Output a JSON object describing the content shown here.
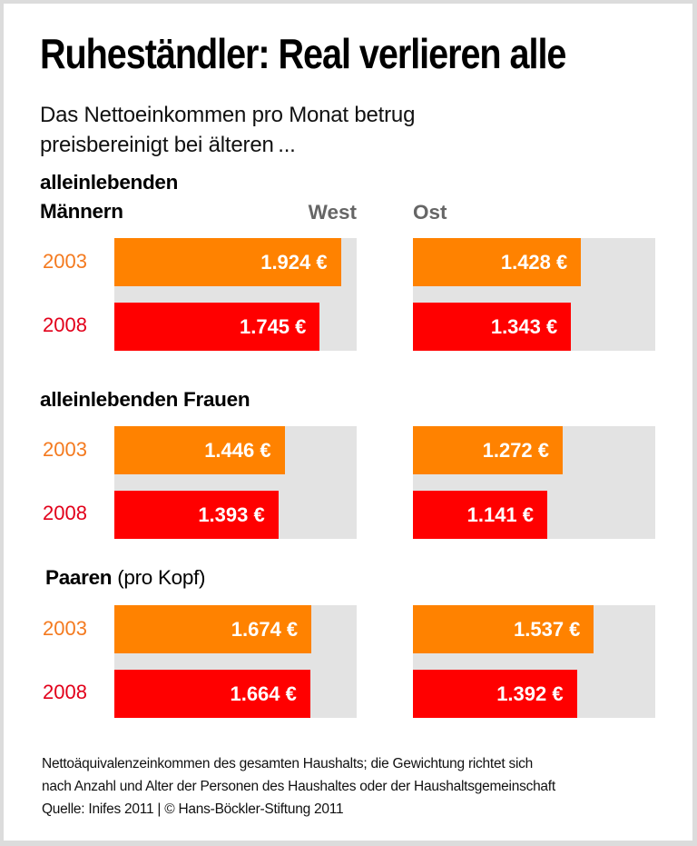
{
  "chart_data": {
    "type": "bar",
    "orientation": "horizontal",
    "title": "Ruheständler: Real verlieren alle",
    "subtitle_lines": [
      "Das Nettoeinkommen pro Monat betrug",
      "preisbereinigt bei älteren ..."
    ],
    "columns": [
      "West",
      "Ost"
    ],
    "years": [
      "2003",
      "2008"
    ],
    "unit": "€",
    "xlim": [
      0,
      2058
    ],
    "colors": {
      "2003": "#ff8200",
      "2008": "#ff0000",
      "track": "#e3e3e3",
      "year2003_text": "#f47a1f",
      "year2008_text": "#e2001a",
      "column_header_text": "#666666"
    },
    "groups": [
      {
        "label_lines": [
          "alleinlebenden",
          "Männern"
        ],
        "series": [
          {
            "year": "2003",
            "west": 1924,
            "ost": 1428,
            "west_label": "1.924 €",
            "ost_label": "1.428 €"
          },
          {
            "year": "2008",
            "west": 1745,
            "ost": 1343,
            "west_label": "1.745 €",
            "ost_label": "1.343 €"
          }
        ]
      },
      {
        "label_lines": [
          "alleinlebenden Frauen"
        ],
        "series": [
          {
            "year": "2003",
            "west": 1446,
            "ost": 1272,
            "west_label": "1.446 €",
            "ost_label": "1.272 €"
          },
          {
            "year": "2008",
            "west": 1393,
            "ost": 1141,
            "west_label": "1.393 €",
            "ost_label": "1.141 €"
          }
        ]
      },
      {
        "label_bold": "Paaren",
        "label_normal": " (pro Kopf)",
        "series": [
          {
            "year": "2003",
            "west": 1674,
            "ost": 1537,
            "west_label": "1.674 €",
            "ost_label": "1.537 €"
          },
          {
            "year": "2008",
            "west": 1664,
            "ost": 1392,
            "west_label": "1.664 €",
            "ost_label": "1.392 €"
          }
        ]
      }
    ],
    "footnote_lines": [
      "Nettoäquivalenzeinkommen des gesamten Haushalts; die Gewichtung richtet sich",
      "nach Anzahl und Alter der Personen des Haushaltes oder der Haushaltsgemeinschaft",
      "Quelle: Inifes 2011 | © Hans-Böckler-Stiftung 2011"
    ]
  }
}
